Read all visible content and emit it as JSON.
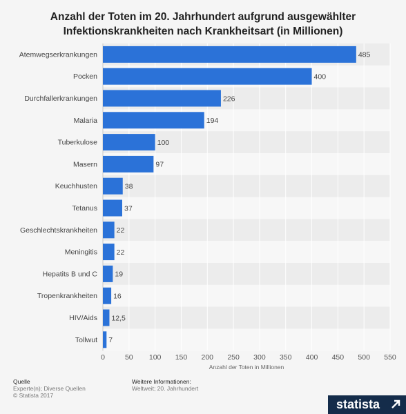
{
  "title_lines": [
    "Anzahl der Toten im 20. Jahrhundert aufgrund ausgewählter",
    "Infektionskrankheiten nach Krankheitsart (in Millionen)"
  ],
  "chart_data": {
    "type": "bar",
    "orientation": "horizontal",
    "categories": [
      "Atemwegserkrankungen",
      "Pocken",
      "Durchfallerkrankungen",
      "Malaria",
      "Tuberkulose",
      "Masern",
      "Keuchhusten",
      "Tetanus",
      "Geschlechtskrankheiten",
      "Meningitis",
      "Hepatits B und C",
      "Tropenkrankheiten",
      "HIV/Aids",
      "Tollwut"
    ],
    "values": [
      485,
      400,
      226,
      194,
      100,
      97,
      38,
      37,
      22,
      22,
      19,
      16,
      12.5,
      7
    ],
    "value_labels": [
      "485",
      "400",
      "226",
      "194",
      "100",
      "97",
      "38",
      "37",
      "22",
      "22",
      "19",
      "16",
      "12,5",
      "7"
    ],
    "xlabel": "Anzahl der Toten in Millionen",
    "xlim": [
      0,
      550
    ],
    "xticks": [
      0,
      50,
      100,
      150,
      200,
      250,
      300,
      350,
      400,
      450,
      500,
      550
    ],
    "bar_color": "#2b72d8",
    "grid": true
  },
  "footer": {
    "source_heading": "Quelle",
    "source_lines": [
      "Experte(n); Diverse Quellen",
      "© Statista 2017"
    ],
    "info_heading": "Weitere Informationen:",
    "info_lines": [
      "Weltweit; 20. Jahrhundert"
    ],
    "logo_text": "statista"
  }
}
